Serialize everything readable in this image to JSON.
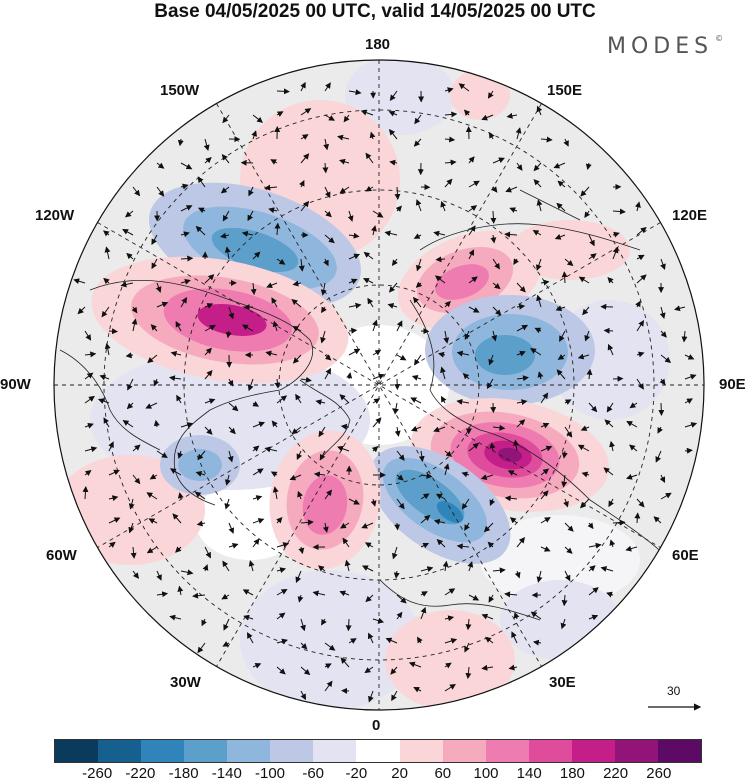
{
  "title": "Base 04/05/2025 00 UTC, valid 14/05/2025 00 UTC",
  "brand": "MODES",
  "brand_mark": "©",
  "longitude_labels": {
    "top": "180",
    "bottom": "0",
    "left": "90W",
    "right": "90E",
    "upper_left": "150W",
    "upper_right": "150E",
    "mid_left_upper": "120W",
    "mid_right_upper": "120E",
    "mid_left_lower": "60W",
    "mid_right_lower": "60E",
    "lower_left": "30W",
    "lower_right": "30E"
  },
  "reference_vector": "30",
  "colorbar": {
    "ticks": [
      "-260",
      "-220",
      "-180",
      "-140",
      "-100",
      "-60",
      "-20",
      "20",
      "60",
      "100",
      "140",
      "180",
      "220",
      "260"
    ],
    "colors": [
      "#0a3a5c",
      "#15608e",
      "#2f84b9",
      "#5b9fca",
      "#8fb6dc",
      "#bcc8e6",
      "#e3e3f1",
      "#ffffff",
      "#fad6d9",
      "#f5aabe",
      "#ef7cb0",
      "#e04c9c",
      "#c41e88",
      "#921479",
      "#5c0a66"
    ]
  }
}
